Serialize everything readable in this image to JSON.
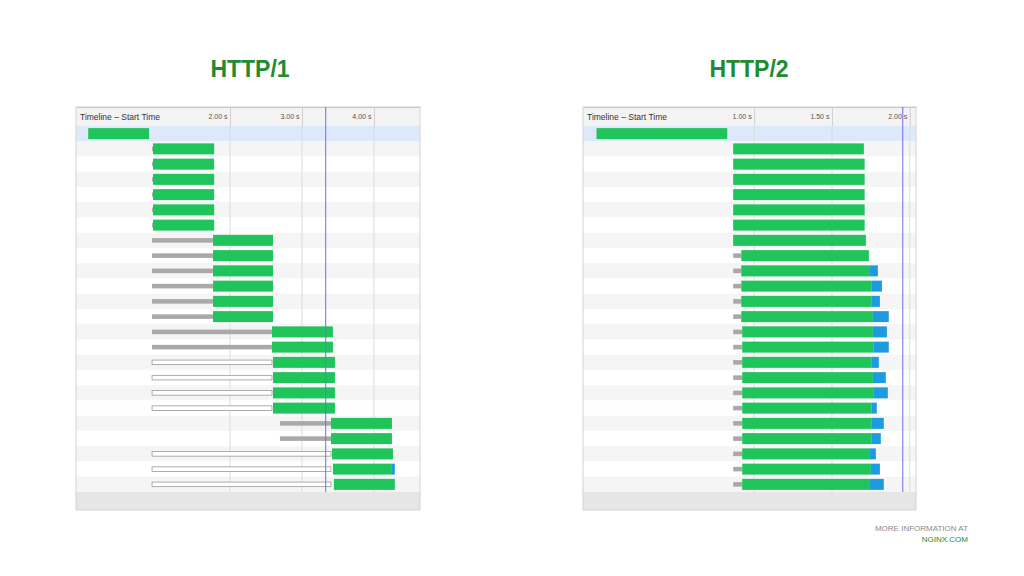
{
  "chart_data": [
    {
      "type": "timeline",
      "title": "HTTP/1",
      "header": "Timeline – Start Time",
      "orientation": "horizontal",
      "grid": true,
      "tick_labels": "x",
      "xlim": [
        -0.14,
        4.64
      ],
      "xticks": [
        {
          "value": 2,
          "label": "2.00 s"
        },
        {
          "value": 3,
          "label": "3.00 s"
        },
        {
          "value": 4,
          "label": "4.00 s"
        }
      ],
      "vline": 3.33,
      "vline_color": "#6f6fe0",
      "categories": [
        null,
        null,
        null,
        null,
        null,
        null,
        null,
        null,
        null,
        null,
        null,
        null,
        null,
        null,
        null,
        null,
        null,
        null,
        null,
        null,
        null,
        null,
        null,
        null
      ],
      "segments": [
        {
          "color": "#ffffff",
          "line_style": "outline",
          "marker": "thin",
          "starts": [
            null,
            null,
            null,
            null,
            null,
            null,
            null,
            null,
            null,
            null,
            null,
            null,
            null,
            null,
            null,
            0.917,
            0.917,
            0.917,
            0.917,
            null,
            null,
            0.917,
            0.917,
            0.917
          ],
          "ends": [
            null,
            null,
            null,
            null,
            null,
            null,
            null,
            null,
            null,
            null,
            null,
            null,
            null,
            null,
            null,
            2.583,
            2.583,
            2.583,
            2.583,
            null,
            null,
            3.403,
            3.403,
            3.403
          ]
        },
        {
          "color": "#a9a9a9",
          "marker": "thin",
          "starts": [
            null,
            0.917,
            0.917,
            0.917,
            0.917,
            0.917,
            0.917,
            0.917,
            0.917,
            0.917,
            0.917,
            0.917,
            0.917,
            0.917,
            0.917,
            null,
            null,
            null,
            null,
            2.694,
            2.694,
            null,
            null,
            null
          ],
          "ends": [
            null,
            0.93,
            0.93,
            0.93,
            0.93,
            0.93,
            0.93,
            1.764,
            1.764,
            1.764,
            1.764,
            1.764,
            1.764,
            2.583,
            2.583,
            null,
            null,
            null,
            null,
            3.403,
            3.403,
            null,
            null,
            null
          ]
        },
        {
          "color": "#1fc45a",
          "starts": [
            0.03,
            0.93,
            0.93,
            0.93,
            0.93,
            0.93,
            0.93,
            1.764,
            1.764,
            1.764,
            1.764,
            1.764,
            1.764,
            2.583,
            2.583,
            2.597,
            2.597,
            2.597,
            2.597,
            3.403,
            3.403,
            3.417,
            3.43,
            3.444
          ],
          "ends": [
            0.875,
            1.78,
            1.78,
            1.78,
            1.78,
            1.78,
            1.78,
            2.597,
            2.597,
            2.597,
            2.597,
            2.597,
            2.597,
            3.43,
            3.43,
            3.458,
            3.458,
            3.458,
            3.458,
            4.25,
            4.25,
            4.264,
            4.25,
            4.29
          ]
        },
        {
          "color": "#1e9be0",
          "starts": [
            null,
            null,
            null,
            null,
            null,
            null,
            null,
            null,
            null,
            null,
            null,
            null,
            null,
            null,
            null,
            null,
            null,
            null,
            null,
            null,
            null,
            null,
            4.25,
            null
          ],
          "ends": [
            null,
            null,
            null,
            null,
            null,
            null,
            null,
            null,
            null,
            null,
            null,
            null,
            null,
            null,
            null,
            null,
            null,
            null,
            null,
            null,
            null,
            null,
            4.29,
            null
          ]
        }
      ]
    },
    {
      "type": "timeline",
      "title": "HTTP/2",
      "header": "Timeline – Start Time",
      "orientation": "horizontal",
      "grid": true,
      "tick_labels": "x",
      "xlim": [
        -0.1,
        2.04
      ],
      "xticks": [
        {
          "value": 1,
          "label": "1.00 s"
        },
        {
          "value": 1.5,
          "label": "1.50 s"
        },
        {
          "value": 2,
          "label": "2.00 s"
        }
      ],
      "vline": 1.955,
      "vline_color": "#6f6fe0",
      "categories": [
        null,
        null,
        null,
        null,
        null,
        null,
        null,
        null,
        null,
        null,
        null,
        null,
        null,
        null,
        null,
        null,
        null,
        null,
        null,
        null,
        null,
        null,
        null,
        null
      ],
      "segments": [
        {
          "color": "#a9a9a9",
          "marker": "thin",
          "starts": [
            null,
            null,
            null,
            null,
            null,
            null,
            null,
            null,
            0.865,
            0.865,
            0.865,
            0.865,
            0.865,
            0.865,
            0.865,
            0.865,
            0.865,
            0.865,
            0.865,
            0.865,
            0.865,
            0.865,
            0.865,
            0.865
          ],
          "ends": [
            null,
            null,
            null,
            null,
            null,
            null,
            null,
            null,
            0.917,
            0.917,
            0.917,
            0.917,
            0.917,
            0.923,
            0.923,
            0.923,
            0.923,
            0.923,
            0.923,
            0.923,
            0.923,
            0.923,
            0.923,
            0.923
          ]
        },
        {
          "color": "#1fc45a",
          "starts": [
            -0.013,
            0.865,
            0.865,
            0.865,
            0.865,
            0.865,
            0.865,
            0.865,
            0.917,
            0.917,
            0.917,
            0.917,
            0.917,
            0.923,
            0.923,
            0.923,
            0.923,
            0.923,
            0.923,
            0.923,
            0.923,
            0.923,
            0.923,
            0.923
          ],
          "ends": [
            0.827,
            1.705,
            1.71,
            1.71,
            1.71,
            1.71,
            1.71,
            1.718,
            1.737,
            1.744,
            1.756,
            1.756,
            1.763,
            1.763,
            1.769,
            1.756,
            1.763,
            1.769,
            1.756,
            1.756,
            1.756,
            1.744,
            1.75,
            1.744
          ]
        },
        {
          "color": "#1e9be0",
          "starts": [
            null,
            null,
            null,
            null,
            null,
            null,
            null,
            null,
            null,
            1.744,
            1.756,
            1.756,
            1.763,
            1.763,
            1.769,
            1.756,
            1.763,
            1.769,
            1.756,
            1.756,
            1.756,
            1.744,
            1.75,
            1.744
          ],
          "ends": [
            null,
            null,
            null,
            null,
            null,
            null,
            null,
            null,
            null,
            1.795,
            1.821,
            1.808,
            1.865,
            1.853,
            1.865,
            1.801,
            1.846,
            1.859,
            1.788,
            1.833,
            1.814,
            1.782,
            1.808,
            1.833
          ]
        }
      ]
    }
  ],
  "footer": {
    "line1": "MORE INFORMATION AT",
    "line2": "NGINX.COM",
    "line2_color": "#1e8c31"
  },
  "title_color": "#1e8c31"
}
